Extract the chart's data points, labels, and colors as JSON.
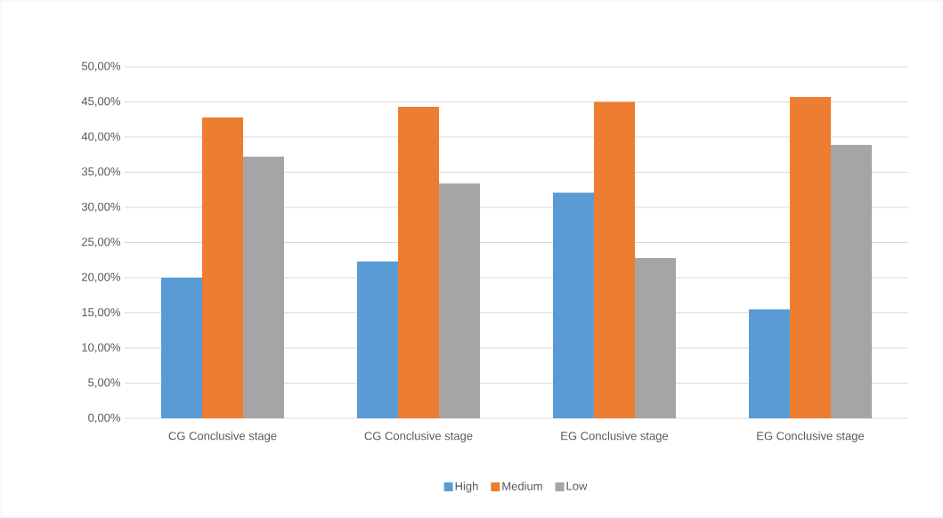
{
  "chart_data": {
    "type": "bar",
    "categories": [
      "CG Conclusive stage",
      "CG Conclusive stage",
      "EG Conclusive stage",
      "EG Conclusive stage"
    ],
    "series": [
      {
        "name": "High",
        "color": "#5b9bd5",
        "values": [
          20.0,
          22.3,
          32.1,
          15.5
        ]
      },
      {
        "name": "Medium",
        "color": "#ed7d31",
        "values": [
          42.8,
          44.3,
          45.0,
          45.7
        ]
      },
      {
        "name": "Low",
        "color": "#a5a5a5",
        "values": [
          37.2,
          33.4,
          22.8,
          38.9
        ]
      }
    ],
    "ylim": [
      0,
      50
    ],
    "yticks": [
      {
        "value": 0,
        "label": "0,00%"
      },
      {
        "value": 5,
        "label": "5,00%"
      },
      {
        "value": 10,
        "label": "10,00%"
      },
      {
        "value": 15,
        "label": "15,00%"
      },
      {
        "value": 20,
        "label": "20,00%"
      },
      {
        "value": 25,
        "label": "25,00%"
      },
      {
        "value": 30,
        "label": "30,00%"
      },
      {
        "value": 35,
        "label": "35,00%"
      },
      {
        "value": 40,
        "label": "40,00%"
      },
      {
        "value": 45,
        "label": "45,00%"
      },
      {
        "value": 50,
        "label": "50,00%"
      }
    ],
    "grid": "y",
    "legend": "bottom"
  }
}
